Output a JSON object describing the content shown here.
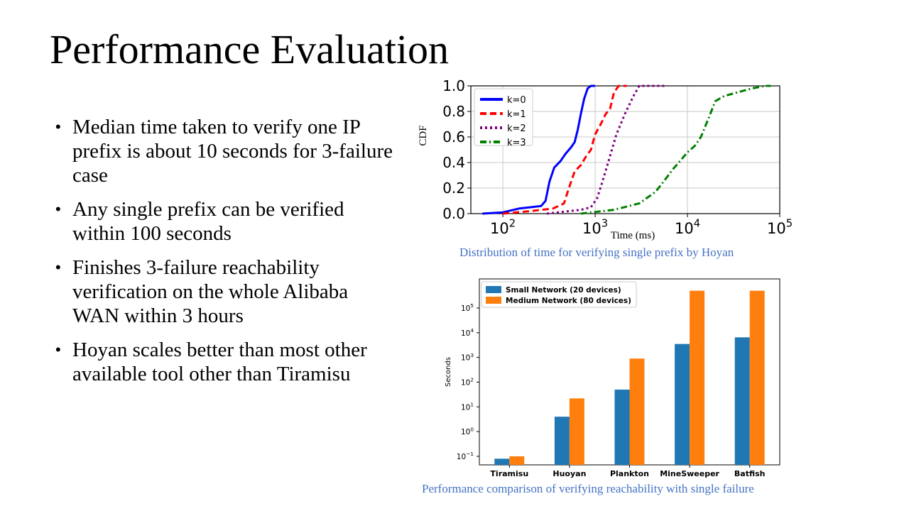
{
  "slide": {
    "title": "Performance Evaluation",
    "bullets": [
      "Median time taken to verify one IP prefix is about 10 seconds for 3-failure case",
      "Any single prefix can be verified within 100 seconds",
      "Finishes 3-failure reachability verification on the whole Alibaba WAN within 3 hours",
      "Hoyan scales better than most other available tool other than Tiramisu"
    ],
    "caption_cdf": "Distribution of time for verifying single prefix by Hoyan",
    "caption_bar": "Performance comparison of  verifying reachability  with single failure"
  },
  "chart_data": [
    {
      "type": "line",
      "xlabel": "Time (ms)",
      "ylabel": "CDF",
      "xscale": "log",
      "xlim": [
        45,
        100000
      ],
      "ylim": [
        0,
        1
      ],
      "x_ticks": [
        {
          "base": "10",
          "exp": "2",
          "v": 100
        },
        {
          "base": "10",
          "exp": "3",
          "v": 1000
        },
        {
          "base": "10",
          "exp": "4",
          "v": 10000
        },
        {
          "base": "10",
          "exp": "5",
          "v": 100000
        }
      ],
      "y_ticks": [
        "0.0",
        "0.2",
        "0.4",
        "0.6",
        "0.8",
        "1.0"
      ],
      "grid": true,
      "legend_position": "top-left",
      "series": [
        {
          "name": "k=0",
          "color": "#0000ff",
          "dash": "solid",
          "points": [
            [
              60,
              0
            ],
            [
              100,
              0.01
            ],
            [
              150,
              0.04
            ],
            [
              200,
              0.05
            ],
            [
              260,
              0.06
            ],
            [
              290,
              0.1
            ],
            [
              320,
              0.25
            ],
            [
              360,
              0.36
            ],
            [
              420,
              0.41
            ],
            [
              480,
              0.47
            ],
            [
              550,
              0.52
            ],
            [
              600,
              0.56
            ],
            [
              650,
              0.66
            ],
            [
              700,
              0.78
            ],
            [
              760,
              0.9
            ],
            [
              830,
              0.98
            ],
            [
              900,
              1.0
            ],
            [
              1000,
              1.0
            ]
          ]
        },
        {
          "name": "k=1",
          "color": "#ff0000",
          "dash": "dashed",
          "points": [
            [
              100,
              0
            ],
            [
              200,
              0.02
            ],
            [
              350,
              0.04
            ],
            [
              460,
              0.08
            ],
            [
              520,
              0.2
            ],
            [
              600,
              0.33
            ],
            [
              700,
              0.38
            ],
            [
              800,
              0.45
            ],
            [
              900,
              0.5
            ],
            [
              1000,
              0.62
            ],
            [
              1150,
              0.7
            ],
            [
              1300,
              0.78
            ],
            [
              1450,
              0.82
            ],
            [
              1600,
              0.95
            ],
            [
              1800,
              1.0
            ],
            [
              2200,
              1.0
            ]
          ]
        },
        {
          "name": "k=2",
          "color": "#800080",
          "dash": "dotted",
          "points": [
            [
              300,
              0
            ],
            [
              700,
              0.03
            ],
            [
              900,
              0.05
            ],
            [
              1050,
              0.12
            ],
            [
              1200,
              0.25
            ],
            [
              1450,
              0.45
            ],
            [
              1700,
              0.62
            ],
            [
              2100,
              0.78
            ],
            [
              2600,
              0.92
            ],
            [
              3000,
              1.0
            ],
            [
              6000,
              1.0
            ]
          ]
        },
        {
          "name": "k=3",
          "color": "#008000",
          "dash": "dashdot",
          "points": [
            [
              700,
              0
            ],
            [
              1600,
              0.03
            ],
            [
              3000,
              0.08
            ],
            [
              4500,
              0.17
            ],
            [
              5500,
              0.25
            ],
            [
              7000,
              0.35
            ],
            [
              8500,
              0.42
            ],
            [
              10000,
              0.48
            ],
            [
              12000,
              0.53
            ],
            [
              14000,
              0.6
            ],
            [
              17000,
              0.75
            ],
            [
              20000,
              0.88
            ],
            [
              25000,
              0.92
            ],
            [
              35000,
              0.95
            ],
            [
              50000,
              0.98
            ],
            [
              70000,
              1.0
            ],
            [
              80000,
              1.0
            ]
          ]
        }
      ]
    },
    {
      "type": "bar",
      "ylabel": "Seconds",
      "yscale": "log",
      "ylim": [
        0.045,
        1500000
      ],
      "y_ticks": [
        {
          "base": "10",
          "exp": "−1",
          "v": 0.1
        },
        {
          "base": "10",
          "exp": "0",
          "v": 1
        },
        {
          "base": "10",
          "exp": "1",
          "v": 10
        },
        {
          "base": "10",
          "exp": "2",
          "v": 100
        },
        {
          "base": "10",
          "exp": "3",
          "v": 1000
        },
        {
          "base": "10",
          "exp": "4",
          "v": 10000
        },
        {
          "base": "10",
          "exp": "5",
          "v": 100000
        }
      ],
      "categories": [
        "Tiramisu",
        "Huoyan",
        "Plankton",
        "MineSweeper",
        "Batfish"
      ],
      "legend_position": "top-left",
      "series": [
        {
          "name": "Small Network (20 devices)",
          "color": "#1f77b4",
          "values": [
            0.08,
            4,
            50,
            3500,
            6500
          ]
        },
        {
          "name": "Medium Network (80 devices)",
          "color": "#ff7f0e",
          "values": [
            0.1,
            22,
            900,
            500000,
            500000
          ]
        }
      ]
    }
  ]
}
